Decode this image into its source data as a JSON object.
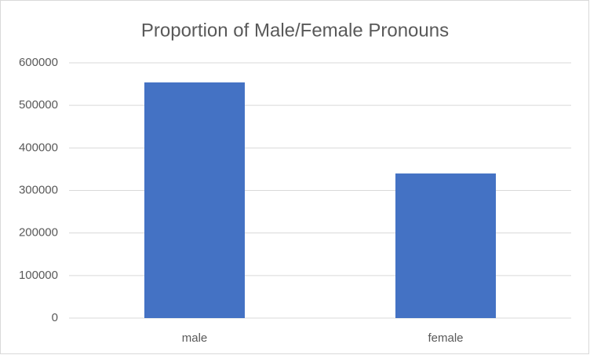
{
  "chart_data": {
    "type": "bar",
    "title": "Proportion of Male/Female Pronouns",
    "categories": [
      "male",
      "female"
    ],
    "values": [
      554000,
      340000
    ],
    "color": "#4472c4",
    "ylim": [
      0,
      600000
    ],
    "yticks": [
      0,
      100000,
      200000,
      300000,
      400000,
      500000,
      600000
    ],
    "grid": true
  }
}
